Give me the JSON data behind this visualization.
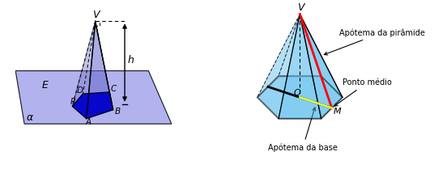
{
  "bg_color": "#ffffff",
  "plane_color": "#aaaaee",
  "pyramid_face_color": "#0000cc",
  "pyramid2_face_color": "#55bbee",
  "label_V1": "V",
  "label_h": "h",
  "label_alpha": "α",
  "label_E": "E",
  "label_A": "A",
  "label_B": "B",
  "label_C": "C",
  "label_D": "D",
  "label_R": "R",
  "label_V2": "V",
  "label_O": "O",
  "label_M": "M",
  "label_apotema_piramide": "Apótema da pirâmide",
  "label_ponto_medio": "Ponto médio",
  "label_apotema_base": "Apótema da base"
}
